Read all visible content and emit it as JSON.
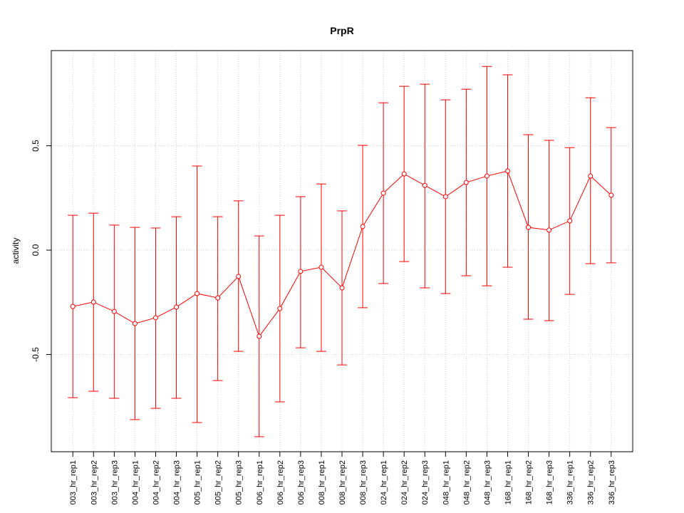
{
  "chart_data": {
    "type": "line",
    "title": "PrpR",
    "xlabel": "",
    "ylabel": "activity",
    "ylim": [
      -0.966,
      0.956
    ],
    "yticks": [
      -0.5,
      0.0,
      0.5
    ],
    "ytick_labels": [
      "-0.5",
      "0.0",
      "0.5"
    ],
    "grid": true,
    "series_color": "#ff0000",
    "categories": [
      "003_hr_rep1",
      "003_hr_rep2",
      "003_hr_rep3",
      "004_hr_rep1",
      "004_hr_rep2",
      "004_hr_rep3",
      "005_hr_rep1",
      "005_hr_rep2",
      "005_hr_rep3",
      "006_hr_rep1",
      "006_hr_rep2",
      "006_hr_rep3",
      "008_hr_rep1",
      "008_hr_rep2",
      "008_hr_rep3",
      "024_hr_rep1",
      "024_hr_rep2",
      "024_hr_rep3",
      "048_hr_rep1",
      "048_hr_rep2",
      "048_hr_rep3",
      "168_hr_rep1",
      "168_hr_rep2",
      "168_hr_rep3",
      "336_hr_rep1",
      "336_hr_rep2",
      "336_hr_rep3"
    ],
    "values": [
      -0.27,
      -0.249,
      -0.294,
      -0.352,
      -0.324,
      -0.273,
      -0.208,
      -0.229,
      -0.126,
      -0.413,
      -0.28,
      -0.102,
      -0.082,
      -0.181,
      0.113,
      0.273,
      0.365,
      0.31,
      0.256,
      0.324,
      0.355,
      0.379,
      0.109,
      0.096,
      0.14,
      0.355,
      0.263
    ],
    "upper": [
      0.167,
      0.177,
      0.12,
      0.109,
      0.106,
      0.16,
      0.403,
      0.16,
      0.236,
      0.068,
      0.167,
      0.256,
      0.317,
      0.188,
      0.502,
      0.706,
      0.785,
      0.795,
      0.72,
      0.771,
      0.88,
      0.84,
      0.553,
      0.526,
      0.491,
      0.73,
      0.587
    ],
    "lower": [
      -0.707,
      -0.676,
      -0.71,
      -0.812,
      -0.758,
      -0.71,
      -0.826,
      -0.625,
      -0.485,
      -0.894,
      -0.727,
      -0.468,
      -0.485,
      -0.55,
      -0.276,
      -0.16,
      -0.055,
      -0.181,
      -0.208,
      -0.123,
      -0.171,
      -0.082,
      -0.331,
      -0.338,
      -0.212,
      -0.065,
      -0.061
    ]
  }
}
